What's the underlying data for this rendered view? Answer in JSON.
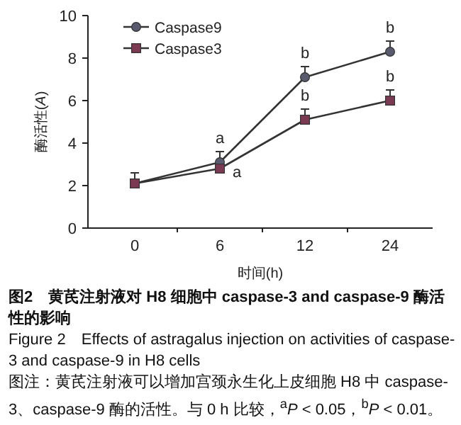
{
  "chart_data": {
    "type": "line",
    "title": "图2　黄芪注射液对 H8 细胞中 caspase-3 and caspase-9 酶活性的影响",
    "subtitle": "Figure 2　Effects of astragalus injection on activities of caspase-3 and caspase-9 in H8 cells",
    "xlabel": "时间(h)",
    "ylabel": "酶活性(*A*)",
    "categories": [
      "0",
      "6",
      "12",
      "24"
    ],
    "series": [
      {
        "name": "Caspase9",
        "color": "#5a5a6e",
        "marker": "circle",
        "values": [
          2.1,
          3.1,
          7.1,
          8.3
        ],
        "errors": [
          null,
          [
            3.1,
            3.6
          ],
          [
            7.1,
            7.6
          ],
          [
            8.3,
            8.8
          ]
        ]
      },
      {
        "name": "Caspase3",
        "color": "#7b3a52",
        "marker": "square",
        "values": [
          2.1,
          2.8,
          5.1,
          6.0
        ],
        "errors": [
          [
            2.1,
            2.6
          ],
          null,
          [
            5.1,
            5.6
          ],
          [
            6.0,
            6.5
          ]
        ]
      }
    ],
    "ylim": [
      0,
      10
    ],
    "yticks": [
      0,
      2,
      4,
      6,
      8,
      10
    ],
    "grid": false,
    "legend": "top left",
    "annotations": [
      {
        "text": "a",
        "x": "6",
        "y": 3.1
      },
      {
        "text": "a",
        "x": "6",
        "y": 2.8
      },
      {
        "text": "b",
        "x": "12",
        "y": 7.1
      },
      {
        "text": "b",
        "x": "12",
        "y": 5.1
      },
      {
        "text": "b",
        "x": "24",
        "y": 8.3
      },
      {
        "text": "b",
        "x": "24",
        "y": 6.0
      },
      "图注：黄芪注射液可以增加宫颈永生化上皮细胞 H8 中 caspase-3、caspase-9 酶的活性。与 0 h 比较，$^{a}$*P* < 0.05，$^{b}$*P* < 0.01。"
    ]
  }
}
